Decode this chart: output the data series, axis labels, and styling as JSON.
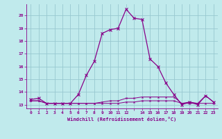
{
  "xlabel": "Windchill (Refroidissement éolien,°C)",
  "bg_color": "#c0eaec",
  "grid_color": "#98c8d0",
  "line_color": "#880088",
  "x_hours": [
    0,
    1,
    2,
    3,
    4,
    5,
    6,
    7,
    8,
    9,
    10,
    11,
    12,
    13,
    14,
    15,
    16,
    17,
    18,
    19,
    20,
    21,
    22,
    23
  ],
  "temp_line": [
    13.4,
    13.5,
    13.1,
    13.1,
    13.1,
    13.1,
    13.8,
    15.3,
    16.4,
    18.6,
    18.9,
    19.0,
    20.5,
    19.8,
    19.7,
    16.6,
    16.0,
    14.7,
    13.8,
    13.0,
    13.2,
    13.0,
    13.7,
    13.2
  ],
  "flat_line1": [
    13.3,
    13.3,
    13.1,
    13.1,
    13.1,
    13.1,
    13.1,
    13.1,
    13.1,
    13.1,
    13.1,
    13.1,
    13.2,
    13.2,
    13.3,
    13.3,
    13.3,
    13.3,
    13.3,
    13.1,
    13.1,
    13.1,
    13.1,
    13.1
  ],
  "flat_line2": [
    13.3,
    13.3,
    13.1,
    13.1,
    13.1,
    13.1,
    13.1,
    13.1,
    13.1,
    13.2,
    13.3,
    13.3,
    13.5,
    13.5,
    13.6,
    13.6,
    13.6,
    13.6,
    13.6,
    13.1,
    13.2,
    13.1,
    13.7,
    13.2
  ],
  "ylim": [
    12.7,
    20.9
  ],
  "yticks": [
    13,
    14,
    15,
    16,
    17,
    18,
    19,
    20
  ],
  "xtick_labels": [
    "0",
    "1",
    "2",
    "3",
    "4",
    "5",
    "6",
    "7",
    "8",
    "9",
    "10",
    "11",
    "12",
    "",
    "14",
    "15",
    "16",
    "17",
    "18",
    "19",
    "20",
    "21",
    "22",
    "23"
  ]
}
